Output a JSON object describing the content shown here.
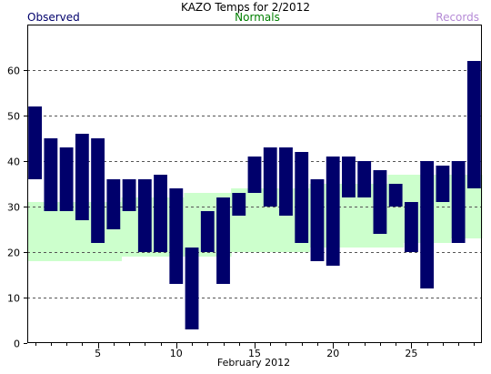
{
  "chart_data": {
    "type": "bar",
    "title": "KAZO Temps for  2/2012",
    "xlabel": "February 2012",
    "ylabel": "",
    "ylim": [
      0,
      70
    ],
    "yticks": [
      0,
      10,
      20,
      30,
      40,
      50,
      60
    ],
    "xticks": [
      5,
      10,
      15,
      20,
      25
    ],
    "x_range": [
      0.5,
      29.5
    ],
    "grid": "horizontal dashed",
    "legend": [
      {
        "name": "Observed",
        "placement": "top-left",
        "color": "#00006b"
      },
      {
        "name": "Normals",
        "placement": "top-center",
        "color": "#007f00"
      },
      {
        "name": "Records",
        "placement": "top-right",
        "color": "#b58ad6"
      }
    ],
    "colors": {
      "observed": "#00006b",
      "normals": "#ccffcc",
      "frame": "#000000",
      "grid": "#555555"
    },
    "days": [
      1,
      2,
      3,
      4,
      5,
      6,
      7,
      8,
      9,
      10,
      11,
      12,
      13,
      14,
      15,
      16,
      17,
      18,
      19,
      20,
      21,
      22,
      23,
      24,
      25,
      26,
      27,
      28,
      29
    ],
    "series": [
      {
        "name": "Observed",
        "high": [
          52,
          45,
          43,
          46,
          45,
          36,
          36,
          36,
          37,
          34,
          21,
          29,
          32,
          33,
          41,
          43,
          43,
          42,
          36,
          41,
          41,
          40,
          38,
          35,
          31,
          40,
          39,
          40,
          62
        ],
        "low": [
          36,
          29,
          29,
          27,
          22,
          25,
          29,
          20,
          20,
          13,
          3,
          20,
          13,
          28,
          33,
          30,
          28,
          22,
          18,
          17,
          32,
          32,
          24,
          30,
          20,
          12,
          31,
          22,
          34
        ]
      },
      {
        "name": "Normals",
        "high": [
          31,
          31,
          31,
          31,
          31,
          31,
          32,
          32,
          32,
          32,
          33,
          33,
          33,
          34,
          34,
          34,
          34,
          34,
          35,
          35,
          35,
          35,
          35,
          37,
          37,
          37,
          37,
          37,
          37
        ],
        "low": [
          18,
          18,
          18,
          18,
          18,
          18,
          19,
          19,
          19,
          19,
          19,
          19,
          19,
          20,
          20,
          20,
          20,
          20,
          21,
          21,
          21,
          21,
          21,
          21,
          22,
          22,
          22,
          23,
          23
        ]
      }
    ]
  }
}
